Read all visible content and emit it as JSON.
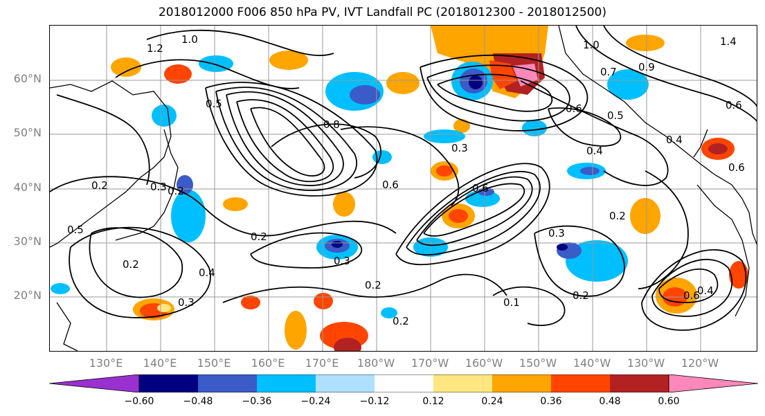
{
  "title": "2018012000 F006 850 hPa PV, IVT Landfall PC (2018012300 - 2018012500)",
  "lat_labels": [
    "60°N",
    "50°N",
    "40°N",
    "30°N",
    "20°N"
  ],
  "lon_labels": [
    "130°E",
    "140°E",
    "150°E",
    "160°E",
    "170°E",
    "180°W",
    "170°W",
    "160°W",
    "150°W",
    "140°W",
    "130°W",
    "120°W"
  ],
  "colorbar": {
    "colors": [
      "#9b30d0",
      "#000080",
      "#3a5bc8",
      "#00bfff",
      "#b0e0ff",
      "#ffffff",
      "#ffe680",
      "#ffa500",
      "#ff4500",
      "#b22222",
      "#ff88bb"
    ],
    "ticks": [
      "−0.60",
      "−0.48",
      "−0.36",
      "−0.24",
      "−0.12",
      "0.12",
      "0.24",
      "0.36",
      "0.48",
      "0.60"
    ]
  },
  "contour_labels": [
    "1.0",
    "1.2",
    "1.4",
    "1.0",
    "0.7",
    "0.9",
    "0.6",
    "0.5",
    "0.4",
    "0.3",
    "0.8",
    "0.6",
    "0.5",
    "0.6",
    "0.2",
    "0.3",
    "0.2",
    "0.5",
    "0.2",
    "0.3",
    "0.2",
    "0.4",
    "0.3",
    "0.2",
    "0.2",
    "0.1",
    "0.3",
    "0.6",
    "0.2",
    "0.2",
    "0.4",
    "0.6",
    "0.4",
    "0.6"
  ]
}
